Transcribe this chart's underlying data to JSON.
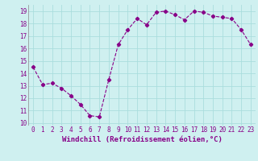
{
  "x": [
    0,
    1,
    2,
    3,
    4,
    5,
    6,
    7,
    8,
    9,
    10,
    11,
    12,
    13,
    14,
    15,
    16,
    17,
    18,
    19,
    20,
    21,
    22,
    23
  ],
  "y": [
    14.5,
    13.1,
    13.2,
    12.8,
    12.2,
    11.5,
    10.6,
    10.5,
    13.5,
    16.3,
    17.5,
    18.4,
    17.9,
    18.9,
    19.0,
    18.7,
    18.3,
    19.0,
    18.9,
    18.6,
    18.5,
    18.4,
    17.5,
    16.3
  ],
  "line_color": "#880088",
  "marker": "D",
  "marker_size": 2.2,
  "bg_color": "#cff0f0",
  "grid_color": "#aadddd",
  "axis_label_color": "#880088",
  "tick_color": "#880088",
  "xlabel": "Windchill (Refroidissement éolien,°C)",
  "ylim": [
    9.8,
    19.5
  ],
  "yticks": [
    10,
    11,
    12,
    13,
    14,
    15,
    16,
    17,
    18,
    19
  ],
  "xticks": [
    0,
    1,
    2,
    3,
    4,
    5,
    6,
    7,
    8,
    9,
    10,
    11,
    12,
    13,
    14,
    15,
    16,
    17,
    18,
    19,
    20,
    21,
    22,
    23
  ],
  "tick_fontsize": 5.5,
  "label_fontsize": 6.5,
  "line_width": 0.8,
  "xlim": [
    -0.5,
    23.5
  ]
}
